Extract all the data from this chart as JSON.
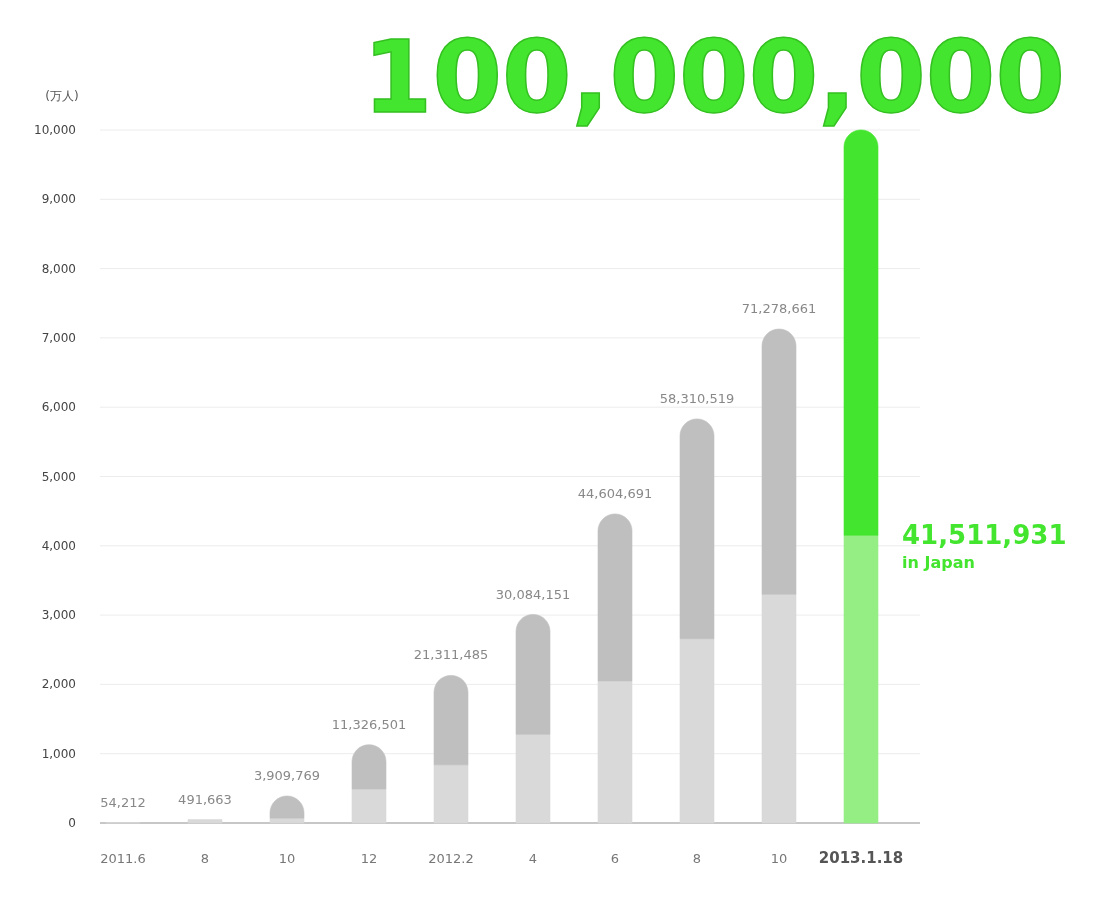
{
  "chart_data": {
    "type": "bar",
    "stacked": true,
    "ylabel": "(万人)",
    "categories": [
      "2011.6",
      "8",
      "10",
      "12",
      "2012.2",
      "4",
      "6",
      "8",
      "10",
      "2013.1.18"
    ],
    "series": [
      {
        "name": "in Japan",
        "colors": [
          "#d9d9d9",
          "#d9d9d9",
          "#d9d9d9",
          "#d9d9d9",
          "#d9d9d9",
          "#d9d9d9",
          "#d9d9d9",
          "#d9d9d9",
          "#d9d9d9",
          "#95ee84"
        ],
        "values": [
          5,
          49,
          70,
          490,
          840,
          1280,
          2050,
          2660,
          3300,
          4151.1931
        ]
      },
      {
        "colors": [
          null,
          null,
          "#bfbfbf",
          "#bfbfbf",
          "#bfbfbf",
          "#bfbfbf",
          "#bfbfbf",
          "#bfbfbf",
          "#bfbfbf",
          "#43e52e"
        ],
        "values": [
          null,
          null,
          320,
          640,
          1290,
          1730,
          2410,
          3171,
          3828,
          5850
        ]
      }
    ],
    "annotations": [
      {
        "text": "54,212",
        "x": "2011.6",
        "y": 5.4212
      },
      {
        "text": "491,663",
        "x": "8",
        "y": 49.1663
      },
      {
        "text": "3,909,769",
        "x": "10",
        "y": 390.9769
      },
      {
        "text": "11,326,501",
        "x": "12",
        "y": 1132.6501
      },
      {
        "text": "21,311,485",
        "x": "2012.2",
        "y": 2131.1485
      },
      {
        "text": "30,084,151",
        "x": "4",
        "y": 3008.4151
      },
      {
        "text": "44,604,691",
        "x": "6",
        "y": 4460.4691
      },
      {
        "text": "58,310,519",
        "y": 5831.0519
      },
      {
        "text": "71,278,661",
        "y": 7127.8661
      },
      {
        "text": "100,000,000",
        "x": "2013.1.18",
        "y": 10000
      },
      {
        "text": "41,511,931",
        "x": "2013.1.18",
        "y": 4151.1931
      }
    ],
    "ylim": [
      0,
      10000
    ],
    "yticks": [
      0,
      {
        "value": 1000,
        "label": "1,000"
      },
      {
        "value": 2000,
        "label": "2,000"
      },
      {
        "value": 3000,
        "label": "3,000"
      },
      {
        "value": 4000,
        "label": "4,000"
      },
      {
        "value": 5000,
        "label": "5,000"
      },
      {
        "value": 6000,
        "label": "6,000"
      },
      {
        "value": 7000,
        "label": "7,000"
      },
      {
        "value": 8000,
        "label": "8,000"
      },
      {
        "value": 9000,
        "label": "9,000"
      },
      {
        "value": 10000,
        "label": "10,000"
      }
    ],
    "grid": "y"
  }
}
